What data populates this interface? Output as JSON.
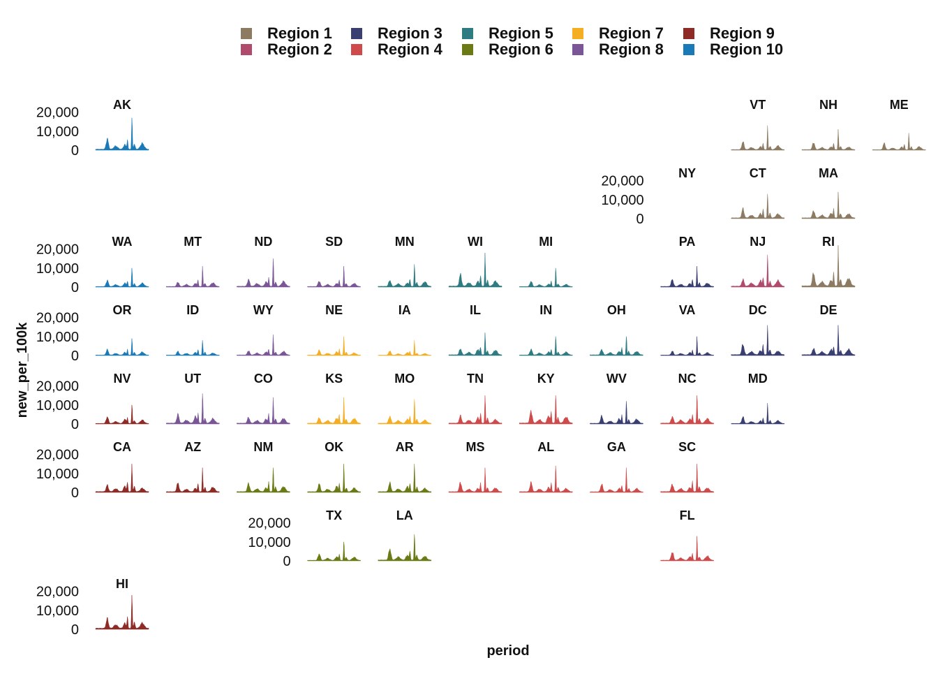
{
  "chart_data": {
    "type": "area",
    "title": "",
    "xlabel": "period",
    "ylabel": "new_per_100k",
    "ylim": [
      0,
      25000
    ],
    "yticks": [
      0,
      10000,
      20000
    ],
    "ytick_labels": [
      "0",
      "10,000",
      "20,000"
    ],
    "facet_layout": "US state geofacet grid (8 rows x 12 columns)",
    "legend": {
      "position": "top",
      "entries": [
        {
          "name": "Region 1",
          "color": "#8c7b62"
        },
        {
          "name": "Region 2",
          "color": "#b04b6e"
        },
        {
          "name": "Region 3",
          "color": "#3a3f72"
        },
        {
          "name": "Region 4",
          "color": "#cf4a4a"
        },
        {
          "name": "Region 5",
          "color": "#2e7b82"
        },
        {
          "name": "Region 6",
          "color": "#6b7a15"
        },
        {
          "name": "Region 7",
          "color": "#f5ad22"
        },
        {
          "name": "Region 8",
          "color": "#7a5697"
        },
        {
          "name": "Region 9",
          "color": "#8e2b27"
        },
        {
          "name": "Region 10",
          "color": "#1a7ab7"
        }
      ]
    },
    "panels": [
      {
        "state": "AK",
        "region": 10,
        "peak": 17000
      },
      {
        "state": "VT",
        "region": 1,
        "peak": 13000
      },
      {
        "state": "NH",
        "region": 1,
        "peak": 11000
      },
      {
        "state": "ME",
        "region": 1,
        "peak": 9000
      },
      {
        "state": "NY",
        "region": 2,
        "peak": 0
      },
      {
        "state": "CT",
        "region": 1,
        "peak": 13000
      },
      {
        "state": "MA",
        "region": 1,
        "peak": 14000
      },
      {
        "state": "WA",
        "region": 10,
        "peak": 10000
      },
      {
        "state": "MT",
        "region": 8,
        "peak": 11000
      },
      {
        "state": "ND",
        "region": 8,
        "peak": 15000
      },
      {
        "state": "SD",
        "region": 8,
        "peak": 11000
      },
      {
        "state": "MN",
        "region": 5,
        "peak": 12000
      },
      {
        "state": "WI",
        "region": 5,
        "peak": 18000
      },
      {
        "state": "MI",
        "region": 5,
        "peak": 10000
      },
      {
        "state": "PA",
        "region": 3,
        "peak": 11000
      },
      {
        "state": "NJ",
        "region": 2,
        "peak": 17000
      },
      {
        "state": "RI",
        "region": 1,
        "peak": 22000
      },
      {
        "state": "OR",
        "region": 10,
        "peak": 9000
      },
      {
        "state": "ID",
        "region": 10,
        "peak": 8000
      },
      {
        "state": "WY",
        "region": 8,
        "peak": 11000
      },
      {
        "state": "NE",
        "region": 7,
        "peak": 10000
      },
      {
        "state": "IA",
        "region": 7,
        "peak": 8000
      },
      {
        "state": "IL",
        "region": 5,
        "peak": 12000
      },
      {
        "state": "IN",
        "region": 5,
        "peak": 10000
      },
      {
        "state": "OH",
        "region": 5,
        "peak": 10000
      },
      {
        "state": "VA",
        "region": 3,
        "peak": 10000
      },
      {
        "state": "DC",
        "region": 3,
        "peak": 16000
      },
      {
        "state": "DE",
        "region": 3,
        "peak": 16000
      },
      {
        "state": "NV",
        "region": 9,
        "peak": 10000
      },
      {
        "state": "UT",
        "region": 8,
        "peak": 16000
      },
      {
        "state": "CO",
        "region": 8,
        "peak": 14000
      },
      {
        "state": "KS",
        "region": 7,
        "peak": 14000
      },
      {
        "state": "MO",
        "region": 7,
        "peak": 13000
      },
      {
        "state": "TN",
        "region": 4,
        "peak": 15000
      },
      {
        "state": "KY",
        "region": 4,
        "peak": 15000
      },
      {
        "state": "WV",
        "region": 3,
        "peak": 12000
      },
      {
        "state": "NC",
        "region": 4,
        "peak": 15000
      },
      {
        "state": "MD",
        "region": 3,
        "peak": 11000
      },
      {
        "state": "CA",
        "region": 9,
        "peak": 15000
      },
      {
        "state": "AZ",
        "region": 9,
        "peak": 13000
      },
      {
        "state": "NM",
        "region": 6,
        "peak": 13000
      },
      {
        "state": "OK",
        "region": 6,
        "peak": 15000
      },
      {
        "state": "AR",
        "region": 6,
        "peak": 15000
      },
      {
        "state": "MS",
        "region": 4,
        "peak": 13000
      },
      {
        "state": "AL",
        "region": 4,
        "peak": 14000
      },
      {
        "state": "GA",
        "region": 4,
        "peak": 13000
      },
      {
        "state": "SC",
        "region": 4,
        "peak": 15000
      },
      {
        "state": "TX",
        "region": 6,
        "peak": 10000
      },
      {
        "state": "LA",
        "region": 6,
        "peak": 14000
      },
      {
        "state": "FL",
        "region": 4,
        "peak": 13000
      },
      {
        "state": "HI",
        "region": 9,
        "peak": 18000
      }
    ]
  }
}
